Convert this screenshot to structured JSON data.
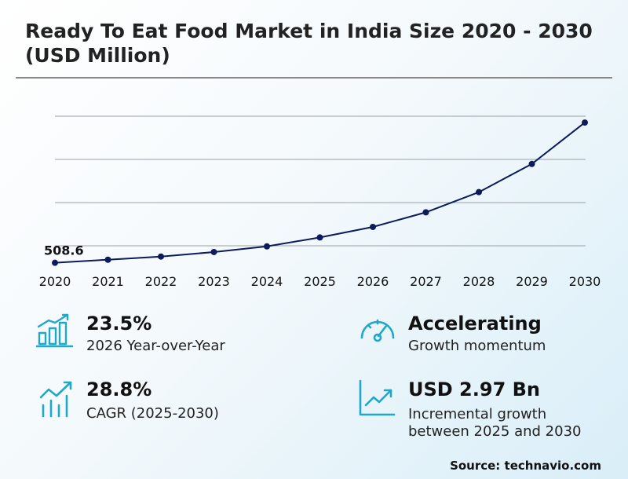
{
  "chart_data": {
    "type": "line",
    "title": "Ready To Eat Food Market in India Size 2020 - 2030 (USD Million)",
    "xlabel": "",
    "ylabel": "USD Million",
    "categories": [
      "2020",
      "2021",
      "2022",
      "2023",
      "2024",
      "2025",
      "2026",
      "2027",
      "2028",
      "2029",
      "2030"
    ],
    "series": [
      {
        "name": "Market Size",
        "values": [
          508.6,
          588,
          670,
          786,
          933,
          1163,
          1436,
          1813,
          2335,
          3063,
          4133
        ]
      }
    ],
    "data_labels": [
      {
        "index": 0,
        "text": "508.6"
      }
    ],
    "ylim": [
      400,
      4500
    ],
    "grid": true,
    "line_color": "#0d1a5c"
  },
  "kpis": [
    {
      "value": "23.5%",
      "label": "2026 Year-over-Year",
      "icon": "bar-growth-icon"
    },
    {
      "value": "Accelerating",
      "label": "Growth momentum",
      "icon": "speedometer-icon"
    },
    {
      "value": "28.8%",
      "label": "CAGR (2025-2030)",
      "icon": "trend-bars-icon"
    },
    {
      "value": "USD 2.97 Bn",
      "label_line1": "Incremental growth",
      "label_line2": "between 2025 and 2030",
      "icon": "line-growth-icon"
    }
  ],
  "source": "Source: technavio.com",
  "colors": {
    "accent": "#1fa8c9",
    "line": "#0d1a5c"
  }
}
